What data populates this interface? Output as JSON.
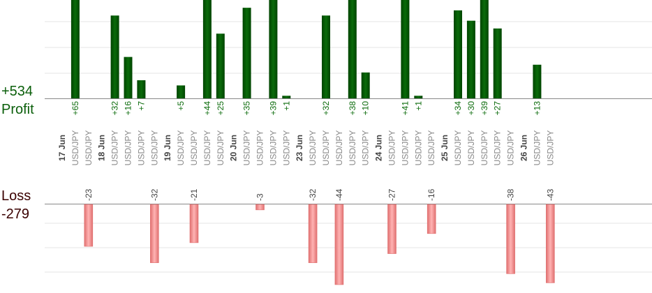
{
  "summary": {
    "profit_value": "+534",
    "profit_label": "Profit",
    "loss_label": "Loss",
    "loss_value": "-279"
  },
  "chart_data": {
    "type": "bar",
    "title": "",
    "xlabel": "",
    "ylabel": "",
    "grid": true,
    "slots": [
      {
        "kind": "date",
        "label": "17 Jun"
      },
      {
        "kind": "trade",
        "label": "USD/JPY",
        "profit": 65
      },
      {
        "kind": "trade",
        "label": "USD/JPY",
        "loss": -23
      },
      {
        "kind": "date",
        "label": "18 Jun"
      },
      {
        "kind": "trade",
        "label": "USD/JPY",
        "profit": 32
      },
      {
        "kind": "trade",
        "label": "USD/JPY",
        "profit": 16
      },
      {
        "kind": "trade",
        "label": "USD/JPY",
        "profit": 7
      },
      {
        "kind": "trade",
        "label": "USD/JPY",
        "loss": -32
      },
      {
        "kind": "date",
        "label": "19 Jun"
      },
      {
        "kind": "trade",
        "label": "USD/JPY",
        "profit": 5
      },
      {
        "kind": "trade",
        "label": "USD/JPY",
        "loss": -21
      },
      {
        "kind": "trade",
        "label": "USD/JPY",
        "profit": 44
      },
      {
        "kind": "trade",
        "label": "USD/JPY",
        "profit": 25
      },
      {
        "kind": "date",
        "label": "20 Jun"
      },
      {
        "kind": "trade",
        "label": "USD/JPY",
        "profit": 35
      },
      {
        "kind": "trade",
        "label": "USD/JPY",
        "loss": -3
      },
      {
        "kind": "trade",
        "label": "USD/JPY",
        "profit": 39
      },
      {
        "kind": "trade",
        "label": "USD/JPY",
        "profit": 1
      },
      {
        "kind": "date",
        "label": "23 Jun"
      },
      {
        "kind": "trade",
        "label": "USD/JPY",
        "loss": -32
      },
      {
        "kind": "trade",
        "label": "USD/JPY",
        "profit": 32
      },
      {
        "kind": "trade",
        "label": "USD/JPY",
        "loss": -44
      },
      {
        "kind": "trade",
        "label": "USD/JPY",
        "profit": 38
      },
      {
        "kind": "trade",
        "label": "USD/JPY",
        "profit": 10
      },
      {
        "kind": "date",
        "label": "24 Jun"
      },
      {
        "kind": "trade",
        "label": "USD/JPY",
        "loss": -27
      },
      {
        "kind": "trade",
        "label": "USD/JPY",
        "profit": 41
      },
      {
        "kind": "trade",
        "label": "USD/JPY",
        "profit": 1
      },
      {
        "kind": "trade",
        "label": "USD/JPY",
        "loss": -16
      },
      {
        "kind": "date",
        "label": "25 Jun"
      },
      {
        "kind": "trade",
        "label": "USD/JPY",
        "profit": 34
      },
      {
        "kind": "trade",
        "label": "USD/JPY",
        "profit": 30
      },
      {
        "kind": "trade",
        "label": "USD/JPY",
        "profit": 39
      },
      {
        "kind": "trade",
        "label": "USD/JPY",
        "profit": 27
      },
      {
        "kind": "trade",
        "label": "USD/JPY",
        "loss": -38
      },
      {
        "kind": "date",
        "label": "26 Jun"
      },
      {
        "kind": "trade",
        "label": "USD/JPY",
        "profit": 13
      },
      {
        "kind": "trade",
        "label": "USD/JPY",
        "loss": -43
      }
    ],
    "profit_axis_max": 38,
    "loss_axis_max": 44,
    "colors": {
      "profit_bar": "#0a6b0a",
      "profit_bar_edge": "#004400",
      "loss_bar": "#ffb3b3",
      "loss_bar_edge": "#e07070",
      "grid": "#e6e6e6",
      "axis": "#888888"
    }
  }
}
